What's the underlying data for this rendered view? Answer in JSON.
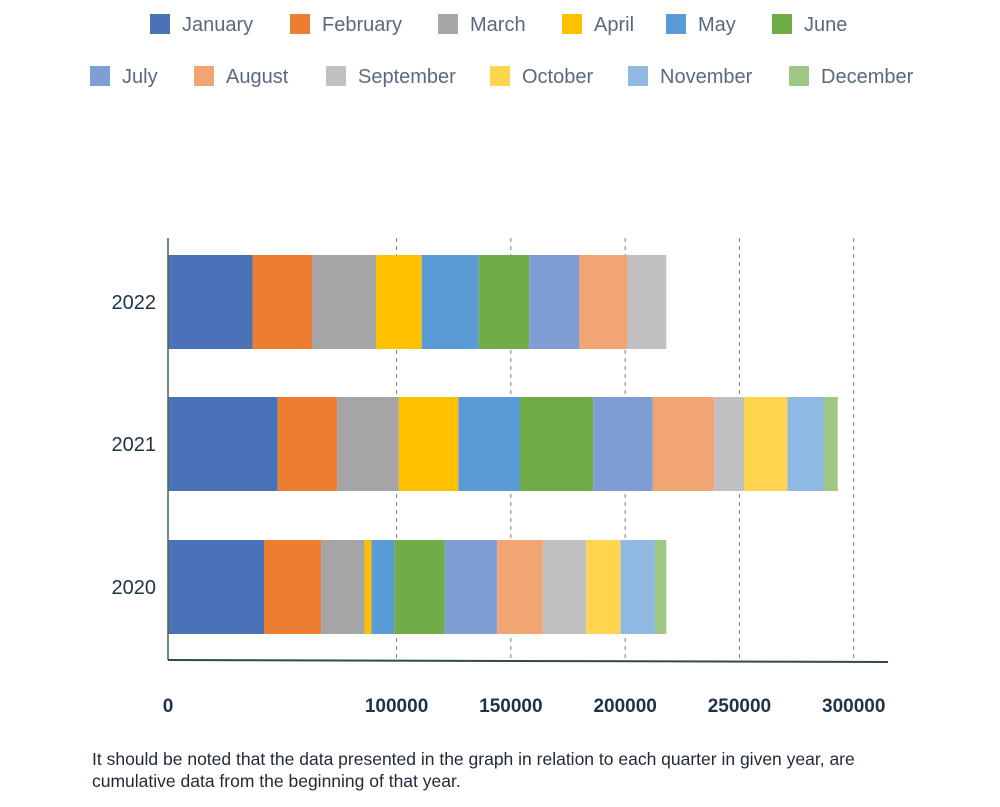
{
  "chart_data": {
    "type": "bar",
    "orientation": "horizontal",
    "stacked": true,
    "categories": [
      "2022",
      "2021",
      "2020"
    ],
    "series": [
      {
        "name": "January",
        "color": "#4a72b8",
        "values": [
          37000,
          48000,
          42000
        ]
      },
      {
        "name": "February",
        "color": "#ed7d31",
        "values": [
          26000,
          26000,
          25000
        ]
      },
      {
        "name": "March",
        "color": "#a5a5a5",
        "values": [
          28000,
          27000,
          19000
        ]
      },
      {
        "name": "April",
        "color": "#ffc000",
        "values": [
          20000,
          26000,
          3000
        ]
      },
      {
        "name": "May",
        "color": "#5b9bd5",
        "values": [
          25000,
          27000,
          10000
        ]
      },
      {
        "name": "June",
        "color": "#70ad47",
        "values": [
          22000,
          32000,
          22000
        ]
      },
      {
        "name": "July",
        "color": "#7f9ed4",
        "values": [
          22000,
          26000,
          23000
        ]
      },
      {
        "name": "August",
        "color": "#f1a572",
        "values": [
          21000,
          27000,
          20000
        ]
      },
      {
        "name": "September",
        "color": "#c0c0c0",
        "values": [
          17000,
          13000,
          19000
        ]
      },
      {
        "name": "October",
        "color": "#ffd54f",
        "values": [
          0,
          19000,
          15000
        ]
      },
      {
        "name": "November",
        "color": "#8fb8e3",
        "values": [
          0,
          16000,
          15000
        ]
      },
      {
        "name": "December",
        "color": "#9dc783",
        "values": [
          0,
          6000,
          5000
        ]
      }
    ],
    "xticks": [
      "0",
      "100000",
      "150000",
      "200000",
      "250000",
      "300000"
    ],
    "xlim": [
      0,
      315000
    ],
    "grid": "vertical-dashed",
    "legend": "top",
    "title": "",
    "xlabel": "",
    "ylabel": ""
  },
  "footnote": "It should be noted that the data presented in the graph in relation to each quarter in given year, are cumulative data from the beginning of that year."
}
